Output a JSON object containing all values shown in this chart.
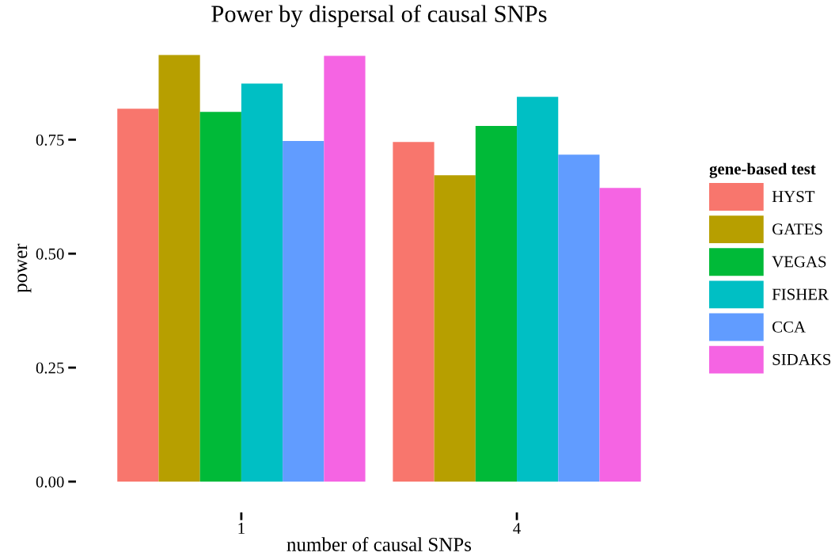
{
  "chart_data": {
    "type": "bar",
    "title": "Power by dispersal of causal SNPs",
    "xlabel": "number of causal SNPs",
    "ylabel": "power",
    "legend_title": "gene-based test",
    "categories": [
      "1",
      "4"
    ],
    "series": [
      {
        "name": "HYST",
        "color": "#f8766d",
        "values": [
          0.818,
          0.745
        ]
      },
      {
        "name": "GATES",
        "color": "#b79f00",
        "values": [
          0.936,
          0.672
        ]
      },
      {
        "name": "VEGAS",
        "color": "#00ba38",
        "values": [
          0.811,
          0.78
        ]
      },
      {
        "name": "FISHER",
        "color": "#00bfc4",
        "values": [
          0.873,
          0.844
        ]
      },
      {
        "name": "CCA",
        "color": "#619cff",
        "values": [
          0.747,
          0.717
        ]
      },
      {
        "name": "SIDAKS",
        "color": "#f564e3",
        "values": [
          0.934,
          0.644
        ]
      }
    ],
    "ylim": [
      0,
      0.936
    ],
    "yticks": [
      {
        "value": 0,
        "label": "0.00"
      },
      {
        "value": 0.25,
        "label": "0.25"
      },
      {
        "value": 0.5,
        "label": "0.50"
      },
      {
        "value": 0.75,
        "label": "0.75"
      }
    ],
    "grid": false,
    "legend": "right"
  }
}
